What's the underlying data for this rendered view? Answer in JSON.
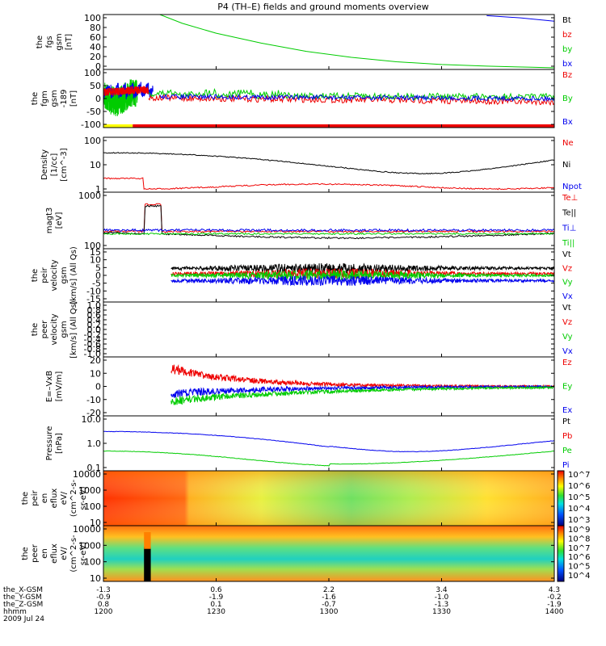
{
  "title": "P4 (TH–E) fields and ground moments overview",
  "colors": {
    "black": "#000000",
    "red": "#ee0000",
    "green": "#00cc00",
    "blue": "#0000ee",
    "yellow": "#ffff00"
  },
  "chart_data": [
    {
      "type": "line",
      "name": "fgs_gsm",
      "ylabel": [
        "the",
        "fgs",
        "gsm",
        "[nT]"
      ],
      "yticks": [
        "100",
        "80",
        "60",
        "40",
        "20",
        "0"
      ],
      "ylim": [
        0,
        100
      ],
      "legend": [
        {
          "label": "Bt",
          "color": "black"
        },
        {
          "label": "bz",
          "color": "red"
        },
        {
          "label": "by",
          "color": "green"
        },
        {
          "label": "bx",
          "color": "blue"
        }
      ],
      "series": [
        {
          "name": "by",
          "x": [
            12.25,
            12.35,
            12.5,
            12.7,
            12.9,
            13.1,
            13.3,
            13.5,
            13.7,
            13.9,
            14.0
          ],
          "y": [
            100,
            84,
            66,
            48,
            33,
            22,
            14,
            9,
            6,
            4,
            3
          ]
        },
        {
          "name": "bx",
          "x": [
            13.7,
            13.85,
            14.0
          ],
          "y": [
            98,
            94,
            88
          ]
        }
      ]
    },
    {
      "type": "line",
      "name": "fgm_gsm",
      "ylabel": [
        "the",
        "fgm",
        "gsm",
        "-189",
        "[nT]"
      ],
      "yticks": [
        "100",
        "50",
        "0",
        "-50",
        "-100"
      ],
      "ylim": [
        -125,
        100
      ],
      "legend": [
        {
          "label": "Bz",
          "color": "red"
        },
        {
          "label": "By",
          "color": "green"
        },
        {
          "label": "Bx",
          "color": "blue"
        }
      ],
      "bar": {
        "yellow_until": 12.13,
        "red_until": 14.0
      }
    },
    {
      "type": "line",
      "name": "density",
      "ylabel": [
        "Density",
        "[1/cc]",
        "[cm^-3]"
      ],
      "yticks": [
        "100",
        "10",
        "1"
      ],
      "yscale": "log",
      "legend": [
        {
          "label": "Ne",
          "color": "red"
        },
        {
          "label": "Ni",
          "color": "black"
        },
        {
          "label": "Npot",
          "color": "blue"
        }
      ]
    },
    {
      "type": "line",
      "name": "magt3",
      "ylabel": [
        "magt3",
        "[eV]"
      ],
      "yticks": [
        "1000",
        "100"
      ],
      "yscale": "log",
      "legend": [
        {
          "label": "Te⊥",
          "color": "red"
        },
        {
          "label": "Te||",
          "color": "black"
        },
        {
          "label": "Ti⊥",
          "color": "blue"
        },
        {
          "label": "Ti||",
          "color": "green"
        }
      ]
    },
    {
      "type": "line",
      "name": "peir_velocity",
      "ylabel": [
        "the",
        "peir",
        "velocity",
        "gsm",
        "[km/s] (All Qs)"
      ],
      "yticks": [
        "15",
        "10",
        "5",
        "0",
        "-5",
        "-10",
        "-15"
      ],
      "ylim": [
        -15,
        15
      ],
      "legend": [
        {
          "label": "Vt",
          "color": "black"
        },
        {
          "label": "Vz",
          "color": "red"
        },
        {
          "label": "Vy",
          "color": "green"
        },
        {
          "label": "Vx",
          "color": "blue"
        }
      ]
    },
    {
      "type": "line",
      "name": "peer_velocity",
      "ylabel": [
        "the",
        "peer",
        "velocity",
        "gsm",
        "[km/s] (All Qs)"
      ],
      "yticks": [
        "1.0",
        "0.8",
        "0.6",
        "0.4",
        "0.2",
        "0.0",
        "-0.2",
        "-0.4",
        "-0.6",
        "-0.8",
        "-1.0"
      ],
      "ylim": [
        -1,
        1
      ],
      "legend": [
        {
          "label": "Vt",
          "color": "black"
        },
        {
          "label": "Vz",
          "color": "red"
        },
        {
          "label": "Vy",
          "color": "green"
        },
        {
          "label": "Vx",
          "color": "blue"
        }
      ]
    },
    {
      "type": "line",
      "name": "efield",
      "ylabel": [
        "E=–VxB",
        "[mV/m]"
      ],
      "yticks": [
        "20",
        "10",
        "0",
        "-10",
        "-20"
      ],
      "ylim": [
        -20,
        20
      ],
      "legend": [
        {
          "label": "Ez",
          "color": "red"
        },
        {
          "label": "Ey",
          "color": "green"
        },
        {
          "label": "Ex",
          "color": "blue"
        }
      ]
    },
    {
      "type": "line",
      "name": "pressure",
      "ylabel": [
        "Pressure",
        "[nPa]"
      ],
      "yticks": [
        "10.0",
        "1.0",
        "0.1"
      ],
      "yscale": "log",
      "legend": [
        {
          "label": "Pt",
          "color": "black"
        },
        {
          "label": "Pb",
          "color": "red"
        },
        {
          "label": "Pe",
          "color": "green"
        },
        {
          "label": "Pi",
          "color": "blue"
        }
      ]
    },
    {
      "type": "heatmap",
      "name": "peir_en_eflux",
      "ylabel": [
        "the",
        "peir",
        "en",
        "eflux",
        "eV/",
        "(cm^2-s-",
        "sr-eV)"
      ],
      "yticks": [
        "10000",
        "1000",
        "100",
        "10"
      ],
      "yscale": "log",
      "colorbar": [
        "10^7",
        "10^6",
        "10^5",
        "10^4",
        "10^3"
      ]
    },
    {
      "type": "heatmap",
      "name": "peer_en_eflux",
      "ylabel": [
        "the",
        "peer",
        "en",
        "eflux",
        "eV/",
        "(cm^2-s-",
        "sr-eV)"
      ],
      "yticks": [
        "10000",
        "1000",
        "100",
        "10"
      ],
      "yscale": "log",
      "colorbar": [
        "10^9",
        "10^8",
        "10^7",
        "10^6",
        "10^5",
        "10^4"
      ]
    }
  ],
  "xaxis": {
    "rows": [
      {
        "label": "the_X-GSM",
        "values": [
          "-1.3",
          "0.6",
          "2.2",
          "3.4",
          "4.3"
        ]
      },
      {
        "label": "the_Y-GSM",
        "values": [
          "-0.9",
          "-1.9",
          "-1.6",
          "-1.0",
          "-0.2"
        ]
      },
      {
        "label": "the_Z-GSM",
        "values": [
          "0.8",
          "0.1",
          "-0.7",
          "-1.3",
          "-1.9"
        ]
      },
      {
        "label": "hhmm",
        "values": [
          "1200",
          "1230",
          "1300",
          "1330",
          "1400"
        ]
      }
    ],
    "date": "2009 Jul 24"
  }
}
